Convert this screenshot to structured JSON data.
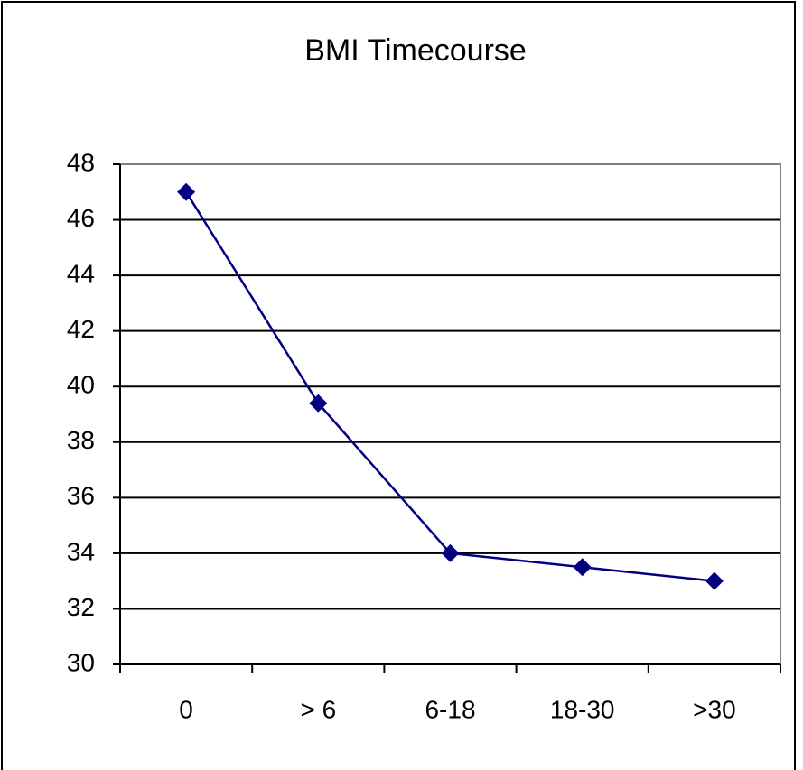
{
  "chart_data": {
    "type": "line",
    "title": "BMI Timecourse",
    "categories": [
      "0",
      "> 6",
      "6-18",
      "18-30",
      ">30"
    ],
    "series": [
      {
        "name": "BMI",
        "color": "#000080",
        "values": [
          47,
          39.4,
          34,
          33.5,
          33
        ]
      }
    ],
    "ylim": [
      30,
      48
    ],
    "yticks": [
      30,
      32,
      34,
      36,
      38,
      40,
      42,
      44,
      46,
      48
    ],
    "grid": true
  }
}
